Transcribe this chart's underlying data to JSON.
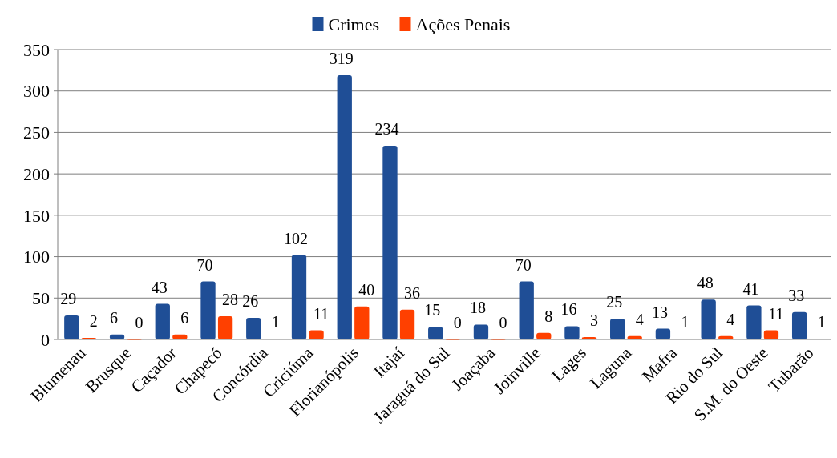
{
  "chart_data": {
    "type": "bar",
    "categories": [
      "Blumenau",
      "Brusque",
      "Caçador",
      "Chapecó",
      "Concórdia",
      "Criciúma",
      "Florianópolis",
      "Itajaí",
      "Jaraguá do Sul",
      "Joaçaba",
      "Joinville",
      "Lages",
      "Laguna",
      "Mafra",
      "Rio do Sul",
      "S.M. do Oeste",
      "Tubarão"
    ],
    "series": [
      {
        "name": "Crimes",
        "color": "#1f4e96",
        "values": [
          29,
          6,
          43,
          70,
          26,
          102,
          319,
          234,
          15,
          18,
          70,
          16,
          25,
          13,
          48,
          41,
          33
        ]
      },
      {
        "name": "Ações Penais",
        "color": "#ff4000",
        "values": [
          2,
          0,
          6,
          28,
          1,
          11,
          40,
          36,
          0,
          0,
          8,
          3,
          4,
          1,
          4,
          11,
          1
        ]
      }
    ],
    "ylim": [
      0,
      350
    ],
    "yticks": [
      0,
      50,
      100,
      150,
      200,
      250,
      300,
      350
    ],
    "grid": "y",
    "legend": "top",
    "data_labels": true
  }
}
